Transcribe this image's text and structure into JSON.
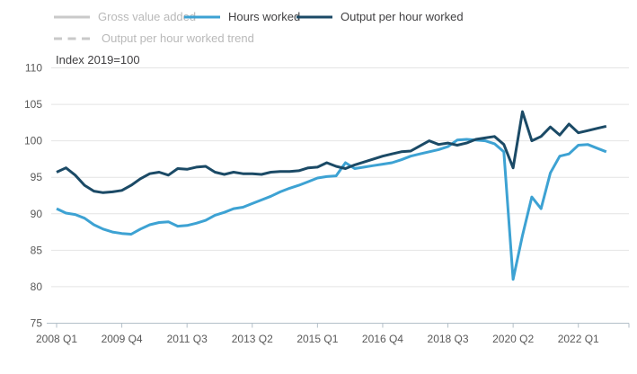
{
  "colors": {
    "hours_worked": "#3da2d3",
    "output_per_hour": "#1b4a66",
    "disabled_line": "#c9c9c9",
    "disabled_text": "#b9b9b9",
    "active_text": "#414042",
    "axis_line": "#b3bfc8",
    "gridline": "#e4e4e4",
    "tick_text": "#595959",
    "background": "#ffffff"
  },
  "legend": {
    "items": [
      {
        "label": "Gross value added",
        "color": "#c9c9c9",
        "style": "solid",
        "disabled": true,
        "row": 1
      },
      {
        "label": "Hours worked",
        "color": "#3da2d3",
        "style": "solid",
        "disabled": false,
        "row": 1
      },
      {
        "label": "Output per hour worked",
        "color": "#1b4a66",
        "style": "solid",
        "disabled": false,
        "row": 1
      },
      {
        "label": "Output per hour worked trend",
        "color": "#c9c9c9",
        "style": "dashed",
        "disabled": true,
        "row": 2
      }
    ]
  },
  "chart_data": {
    "type": "line",
    "title": "Index 2019=100",
    "xlabel": "",
    "ylabel": "Index 2019=100",
    "ylim": [
      75,
      110
    ],
    "yticks": [
      75,
      80,
      85,
      90,
      95,
      100,
      105,
      110
    ],
    "grid": "horizontal",
    "legend_position": "top-left",
    "x_start": "2008 Q1",
    "x_end": "2022 Q4",
    "x_tick_labels": [
      "2008 Q1",
      "2009 Q4",
      "2011 Q3",
      "2013 Q2",
      "2015 Q1",
      "2016 Q4",
      "2018 Q3",
      "2020 Q2",
      "2022 Q1"
    ],
    "x_tick_indices": [
      0,
      7,
      14,
      21,
      28,
      35,
      42,
      49,
      56
    ],
    "quarters": [
      "2008 Q1",
      "2008 Q2",
      "2008 Q3",
      "2008 Q4",
      "2009 Q1",
      "2009 Q2",
      "2009 Q3",
      "2009 Q4",
      "2010 Q1",
      "2010 Q2",
      "2010 Q3",
      "2010 Q4",
      "2011 Q1",
      "2011 Q2",
      "2011 Q3",
      "2011 Q4",
      "2012 Q1",
      "2012 Q2",
      "2012 Q3",
      "2012 Q4",
      "2013 Q1",
      "2013 Q2",
      "2013 Q3",
      "2013 Q4",
      "2014 Q1",
      "2014 Q2",
      "2014 Q3",
      "2014 Q4",
      "2015 Q1",
      "2015 Q2",
      "2015 Q3",
      "2015 Q4",
      "2016 Q1",
      "2016 Q2",
      "2016 Q3",
      "2016 Q4",
      "2017 Q1",
      "2017 Q2",
      "2017 Q3",
      "2017 Q4",
      "2018 Q1",
      "2018 Q2",
      "2018 Q3",
      "2018 Q4",
      "2019 Q1",
      "2019 Q2",
      "2019 Q3",
      "2019 Q4",
      "2020 Q1",
      "2020 Q2",
      "2020 Q3",
      "2020 Q4",
      "2021 Q1",
      "2021 Q2",
      "2021 Q3",
      "2021 Q4",
      "2022 Q1",
      "2022 Q2",
      "2022 Q3",
      "2022 Q4"
    ],
    "series": [
      {
        "name": "Hours worked",
        "color": "#3da2d3",
        "values": [
          90.7,
          90.1,
          89.9,
          89.4,
          88.5,
          87.9,
          87.5,
          87.3,
          87.2,
          87.9,
          88.5,
          88.8,
          88.9,
          88.3,
          88.4,
          88.7,
          89.1,
          89.8,
          90.2,
          90.7,
          90.9,
          91.4,
          91.9,
          92.4,
          93.0,
          93.5,
          93.9,
          94.4,
          94.9,
          95.1,
          95.2,
          97.0,
          96.2,
          96.4,
          96.6,
          96.8,
          97.0,
          97.4,
          97.9,
          98.2,
          98.5,
          98.8,
          99.2,
          100.1,
          100.2,
          100.1,
          100.0,
          99.6,
          98.5,
          81.0,
          87.0,
          92.3,
          90.7,
          95.6,
          97.9,
          98.2,
          99.4,
          99.5,
          99.0,
          98.5
        ]
      },
      {
        "name": "Output per hour worked",
        "color": "#1b4a66",
        "values": [
          95.7,
          96.3,
          95.3,
          93.9,
          93.1,
          92.9,
          93.0,
          93.2,
          93.9,
          94.8,
          95.5,
          95.7,
          95.3,
          96.2,
          96.1,
          96.4,
          96.5,
          95.7,
          95.4,
          95.7,
          95.5,
          95.5,
          95.4,
          95.7,
          95.8,
          95.8,
          95.9,
          96.3,
          96.4,
          97.0,
          96.5,
          96.2,
          96.7,
          97.1,
          97.5,
          97.9,
          98.2,
          98.5,
          98.6,
          99.3,
          100.0,
          99.5,
          99.7,
          99.4,
          99.7,
          100.2,
          100.4,
          100.6,
          99.5,
          96.3,
          104.0,
          100.0,
          100.6,
          101.9,
          100.8,
          102.3,
          101.1,
          101.4,
          101.7,
          102.0
        ]
      }
    ],
    "hidden_series": [
      {
        "name": "Gross value added",
        "visible": false
      },
      {
        "name": "Output per hour worked trend",
        "visible": false
      }
    ]
  }
}
